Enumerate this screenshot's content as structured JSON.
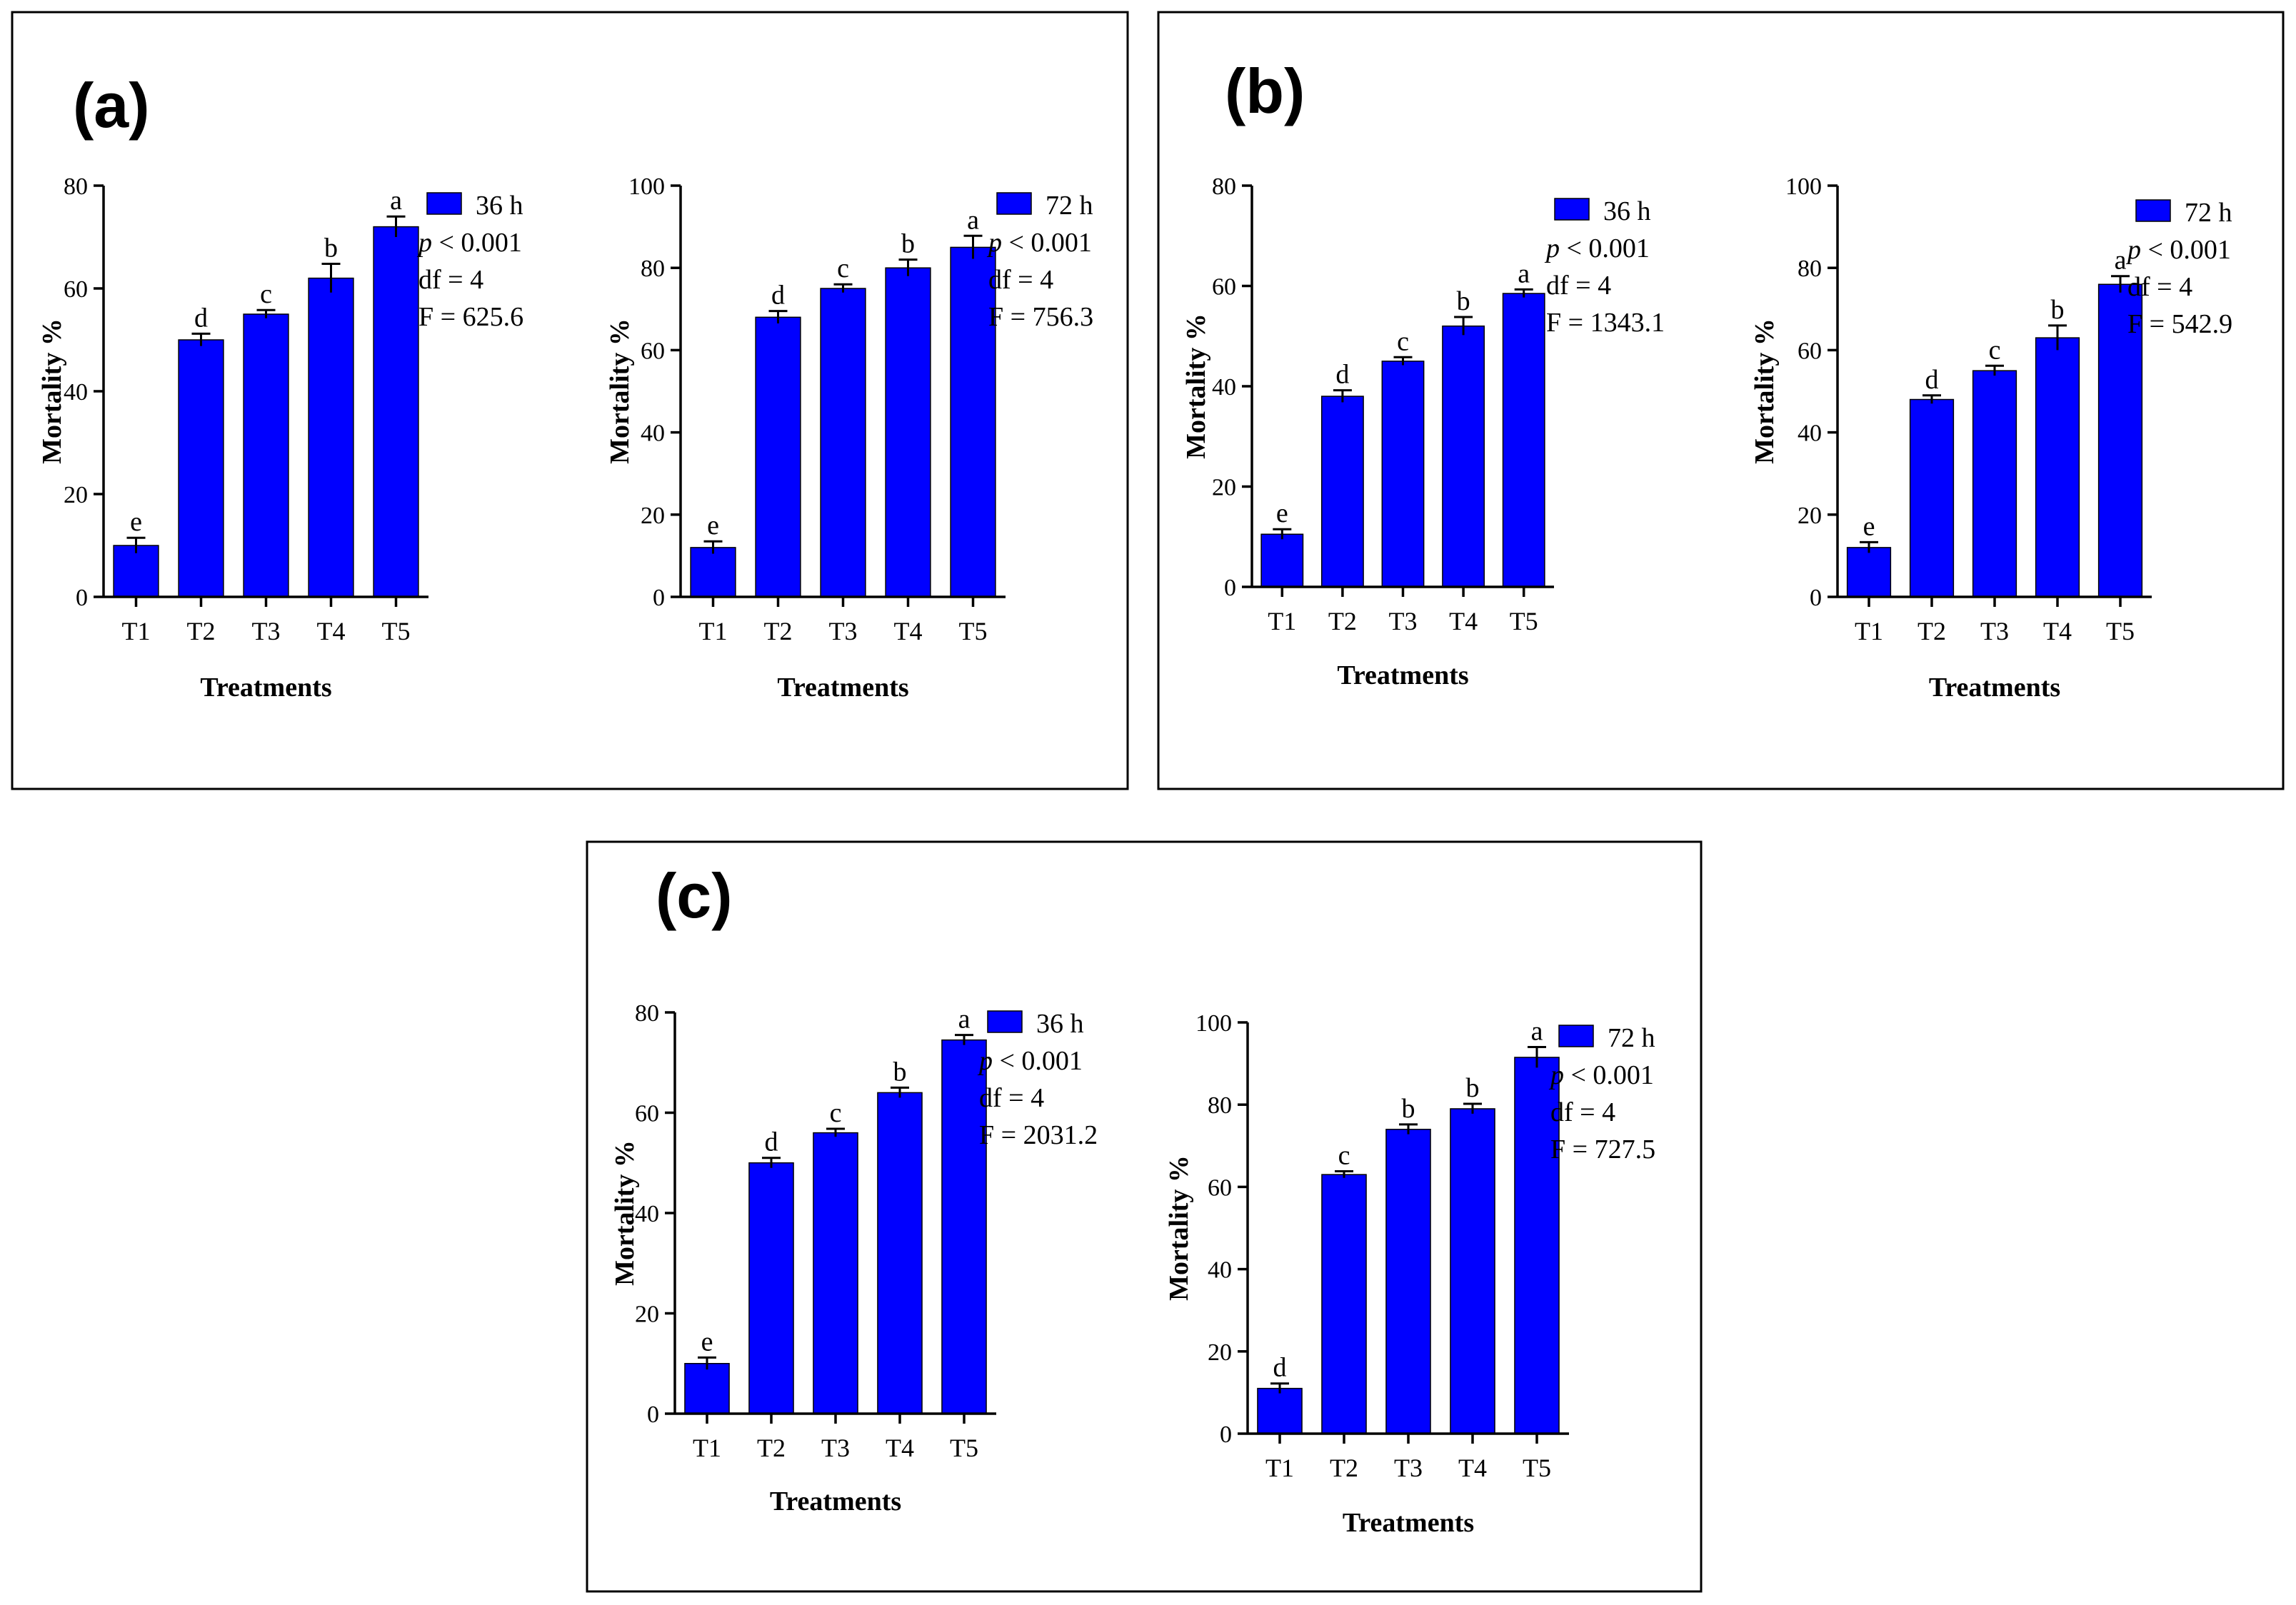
{
  "colors": {
    "bar": "#0000FF",
    "bar_outline": "#000000",
    "frame": "#000000"
  },
  "panels": [
    {
      "label": "(a)"
    },
    {
      "label": "(b)"
    },
    {
      "label": "(c)"
    }
  ],
  "stats_labels": {
    "p_symbol": "p",
    "p_rest": " < 0.001",
    "df": "df = 4"
  },
  "chart_data": [
    {
      "type": "bar",
      "panel": "(a)",
      "categories": [
        "T1",
        "T2",
        "T3",
        "T4",
        "T5"
      ],
      "values": [
        10,
        50,
        55,
        62,
        72
      ],
      "errors": [
        1.5,
        1.2,
        0.8,
        2.8,
        2.0
      ],
      "letters": [
        "e",
        "d",
        "c",
        "b",
        "a"
      ],
      "xlabel": "Treatments",
      "ylabel": "Mortality %",
      "ylim": [
        0,
        80
      ],
      "yticks": [
        0,
        20,
        40,
        60,
        80
      ],
      "legend": "36 h",
      "F": "F = 625.6"
    },
    {
      "type": "bar",
      "panel": "(a)",
      "categories": [
        "T1",
        "T2",
        "T3",
        "T4",
        "T5"
      ],
      "values": [
        12,
        68,
        75,
        80,
        85
      ],
      "errors": [
        1.5,
        1.5,
        1.0,
        2.0,
        2.8
      ],
      "letters": [
        "e",
        "d",
        "c",
        "b",
        "a"
      ],
      "xlabel": "Treatments",
      "ylabel": "Mortality %",
      "ylim": [
        0,
        100
      ],
      "yticks": [
        0,
        20,
        40,
        60,
        80,
        100
      ],
      "legend": "72 h",
      "F": "F = 756.3"
    },
    {
      "type": "bar",
      "panel": "(b)",
      "categories": [
        "T1",
        "T2",
        "T3",
        "T4",
        "T5"
      ],
      "values": [
        10.5,
        38,
        45,
        52,
        58.5
      ],
      "errors": [
        1.0,
        1.2,
        0.8,
        1.8,
        0.8
      ],
      "letters": [
        "e",
        "d",
        "c",
        "b",
        "a"
      ],
      "xlabel": "Treatments",
      "ylabel": "Mortality %",
      "ylim": [
        0,
        80
      ],
      "yticks": [
        0,
        20,
        40,
        60,
        80
      ],
      "legend": "36 h",
      "F": "F = 1343.1"
    },
    {
      "type": "bar",
      "panel": "(b)",
      "categories": [
        "T1",
        "T2",
        "T3",
        "T4",
        "T5"
      ],
      "values": [
        12,
        48,
        55,
        63,
        76
      ],
      "errors": [
        1.3,
        1.0,
        1.2,
        3.0,
        2.0
      ],
      "letters": [
        "e",
        "d",
        "c",
        "b",
        "a"
      ],
      "xlabel": "Treatments",
      "ylabel": "Mortality %",
      "ylim": [
        0,
        100
      ],
      "yticks": [
        0,
        20,
        40,
        60,
        80,
        100
      ],
      "legend": "72 h",
      "F": "F = 542.9"
    },
    {
      "type": "bar",
      "panel": "(c)",
      "categories": [
        "T1",
        "T2",
        "T3",
        "T4",
        "T5"
      ],
      "values": [
        10,
        50,
        56,
        64,
        74.5
      ],
      "errors": [
        1.2,
        1.0,
        0.8,
        1.0,
        1.0
      ],
      "letters": [
        "e",
        "d",
        "c",
        "b",
        "a"
      ],
      "xlabel": "Treatments",
      "ylabel": "Mortality %",
      "ylim": [
        0,
        80
      ],
      "yticks": [
        0,
        20,
        40,
        60,
        80
      ],
      "legend": "36 h",
      "F": "F = 2031.2"
    },
    {
      "type": "bar",
      "panel": "(c)",
      "categories": [
        "T1",
        "T2",
        "T3",
        "T4",
        "T5"
      ],
      "values": [
        11,
        63,
        74,
        79,
        91.5
      ],
      "errors": [
        1.2,
        0.8,
        1.2,
        1.2,
        2.5
      ],
      "letters": [
        "d",
        "c",
        "b",
        "b",
        "a"
      ],
      "xlabel": "Treatments",
      "ylabel": "Mortality %",
      "ylim": [
        0,
        100
      ],
      "yticks": [
        0,
        20,
        40,
        60,
        80,
        100
      ],
      "legend": "72 h",
      "F": "F = 727.5"
    }
  ]
}
